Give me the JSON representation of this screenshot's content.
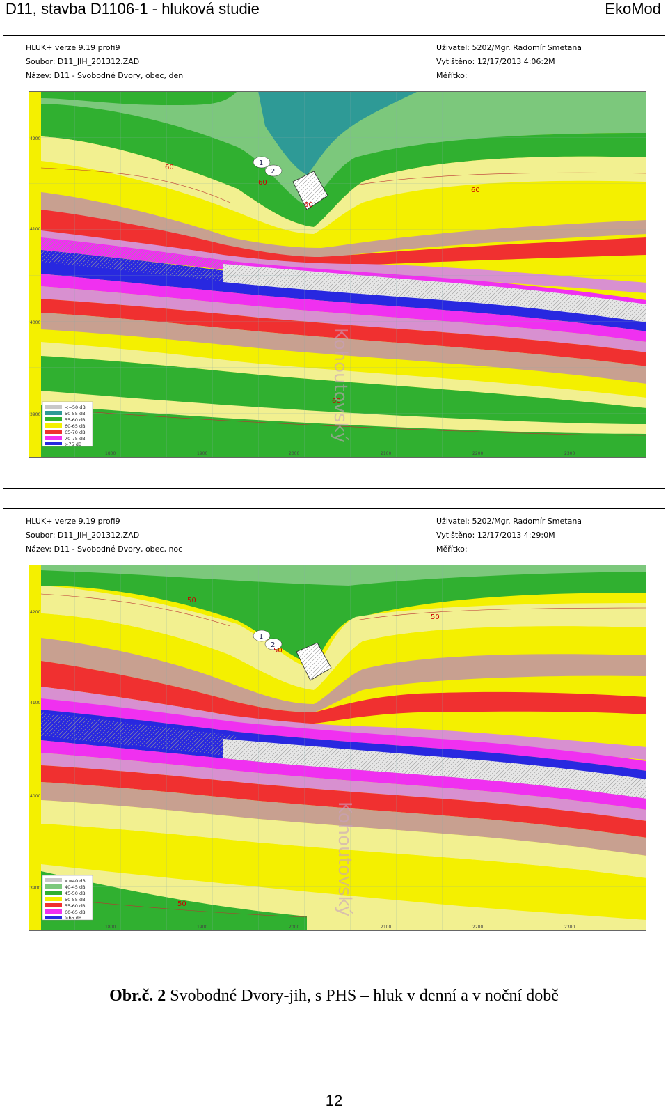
{
  "header": {
    "left": "D11,  stavba D1106-1 - hluková studie",
    "right": "EkoMod"
  },
  "panels": [
    {
      "line1": "HLUK+  verze 9.19 profi9",
      "line2": "Soubor: D11_JIH_201312.ZAD",
      "line3": "Název: D11 - Svobodné Dvory, obec, den",
      "user": "Uživatel: 5202/Mgr. Radomír Smetana",
      "printed": "Vytištěno: 12/17/2013 4:06:2M",
      "scale": "Měřítko:",
      "iso": [
        "60",
        "60",
        "60",
        "60",
        "60"
      ],
      "receivers": [
        "1",
        "2"
      ],
      "street": "Kohoutovský",
      "legend": [
        "<=50 dB",
        "50-55 dB",
        "55-60 dB",
        "60-65 dB",
        "65-70 dB",
        "70-75 dB",
        ">75 dB"
      ],
      "yticks": [
        "4200",
        "4100",
        "4000",
        "3900"
      ],
      "xticks": [
        "1800",
        "1900",
        "2000",
        "2100",
        "2200",
        "2300"
      ],
      "colors": [
        "#c8c8c8",
        "#2e9a96",
        "#7cc87c",
        "#30b030",
        "#f2f090",
        "#f4f000",
        "#c8a090",
        "#f03030",
        "#d890d0",
        "#f030f0",
        "#2828e0"
      ]
    },
    {
      "line1": "HLUK+  verze 9.19 profi9",
      "line2": "Soubor: D11_JIH_201312.ZAD",
      "line3": "Název: D11 - Svobodné Dvory, obec, noc",
      "user": "Uživatel: 5202/Mgr. Radomír Smetana",
      "printed": "Vytištěno: 12/17/2013 4:29:0M",
      "scale": "Měřítko:",
      "iso": [
        "50",
        "50",
        "50",
        "50"
      ],
      "receivers": [
        "1",
        "2"
      ],
      "street": "Kohoutovský",
      "legend": [
        "<=40 dB",
        "40-45 dB",
        "45-50 dB",
        "50-55 dB",
        "55-60 dB",
        "60-65 dB",
        ">65 dB"
      ],
      "yticks": [
        "4200",
        "4100",
        "4000",
        "3900"
      ],
      "xticks": [
        "1800",
        "1900",
        "2000",
        "2100",
        "2200",
        "2300"
      ],
      "colors": [
        "#c8c8c8",
        "#7cc87c",
        "#30b030",
        "#f2f090",
        "#f4f000",
        "#c8a090",
        "#f03030",
        "#d890d0",
        "#f030f0",
        "#2828e0"
      ]
    }
  ],
  "caption": {
    "bold": "Obr.č.  2",
    "text": " Svobodné Dvory-jih, s PHS – hluk v denní a v noční době"
  },
  "page_number": "12"
}
